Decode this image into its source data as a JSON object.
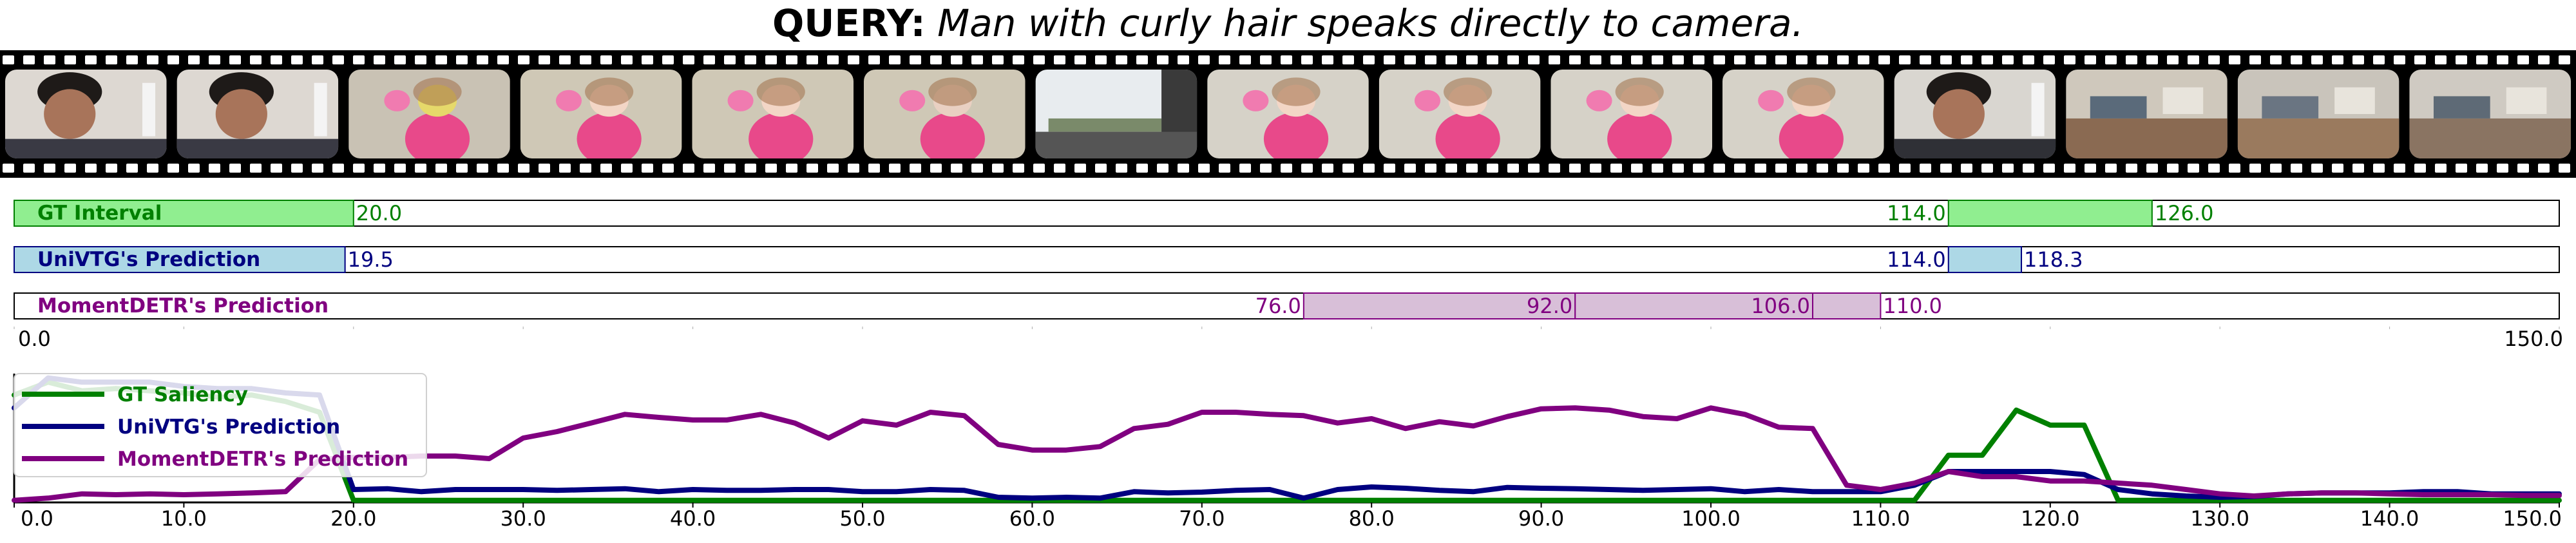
{
  "query": {
    "label": "QUERY:",
    "text": "Man with curly hair speaks directly to camera."
  },
  "filmstrip": {
    "frames": [
      {
        "subject": "man",
        "palette": [
          "#ddd8d2",
          "#a8745a",
          "#3a3a44"
        ]
      },
      {
        "subject": "man",
        "palette": [
          "#ddd8d2",
          "#a8745a",
          "#3a3a44"
        ]
      },
      {
        "subject": "girl",
        "palette": [
          "#c9c2b4",
          "#e8498a",
          "#e6d96a"
        ]
      },
      {
        "subject": "girl",
        "palette": [
          "#cfc8b6",
          "#e8498a",
          "#f3d6c6"
        ]
      },
      {
        "subject": "girl",
        "palette": [
          "#cfc8b6",
          "#e8498a",
          "#f3d6c6"
        ]
      },
      {
        "subject": "girl",
        "palette": [
          "#cfc8b6",
          "#e8498a",
          "#e9d0c2"
        ]
      },
      {
        "subject": "window",
        "palette": [
          "#e8ecef",
          "#3a3a3a",
          "#7a8a6a"
        ]
      },
      {
        "subject": "girl",
        "palette": [
          "#d6d2c8",
          "#e8498a",
          "#f3d6c6"
        ]
      },
      {
        "subject": "girl",
        "palette": [
          "#d6d2c8",
          "#e8498a",
          "#f3d6c6"
        ]
      },
      {
        "subject": "girl",
        "palette": [
          "#d6d2c8",
          "#e8498a",
          "#f3d6c6"
        ]
      },
      {
        "subject": "girl",
        "palette": [
          "#d6d2c8",
          "#e8498a",
          "#f3d6c6"
        ]
      },
      {
        "subject": "man",
        "palette": [
          "#d9d6d0",
          "#a8745a",
          "#2f3036"
        ]
      },
      {
        "subject": "room",
        "palette": [
          "#cfc8bc",
          "#8a6a52",
          "#5a6a7a"
        ]
      },
      {
        "subject": "room",
        "palette": [
          "#c9c4bb",
          "#9a7a5e",
          "#6a7582"
        ]
      },
      {
        "subject": "room",
        "palette": [
          "#cfcac2",
          "#8a7462",
          "#5e6a76"
        ]
      }
    ]
  },
  "colors": {
    "gt": "#008000",
    "gt_fill": "#90ee90",
    "univtg": "#000080",
    "univtg_fill": "#add8e6",
    "momentdetr": "#800080",
    "momentdetr_fill": "#d8bfd8"
  },
  "chart_data": {
    "type": "line",
    "x_range": [
      0,
      150
    ],
    "intervals": [
      {
        "name": "GT Interval",
        "segments": [
          [
            0,
            20.0
          ],
          [
            114.0,
            126.0
          ]
        ],
        "labels": [
          "20.0",
          "114.0",
          "126.0"
        ]
      },
      {
        "name": "UniVTG's Prediction",
        "segments": [
          [
            0,
            19.5
          ],
          [
            114.0,
            118.3
          ]
        ],
        "labels": [
          "19.5",
          "114.0",
          "118.3"
        ]
      },
      {
        "name": "MomentDETR's Prediction",
        "segments": [
          [
            76.0,
            92.0
          ],
          [
            92.0,
            106.0
          ],
          [
            106.0,
            110.0
          ]
        ],
        "labels": [
          "76.0",
          "92.0",
          "106.0",
          "110.0"
        ]
      }
    ],
    "interval_axis_labels": [
      "0.0",
      "150.0"
    ],
    "x": [
      0,
      2,
      4,
      6,
      8,
      10,
      12,
      14,
      16,
      18,
      20,
      22,
      24,
      26,
      28,
      30,
      32,
      34,
      36,
      38,
      40,
      42,
      44,
      46,
      48,
      50,
      52,
      54,
      56,
      58,
      60,
      62,
      64,
      66,
      68,
      70,
      72,
      74,
      76,
      78,
      80,
      82,
      84,
      86,
      88,
      90,
      92,
      94,
      96,
      98,
      100,
      102,
      104,
      106,
      108,
      110,
      112,
      114,
      116,
      118,
      120,
      122,
      124,
      126,
      128,
      130,
      132,
      134,
      136,
      138,
      140,
      142,
      144,
      146,
      148,
      150
    ],
    "series": [
      {
        "name": "GT Saliency",
        "values": [
          2.5,
          2.8,
          2.6,
          2.65,
          2.6,
          2.55,
          2.45,
          2.5,
          2.35,
          2.1,
          0.05,
          0.05,
          0.05,
          0.05,
          0.05,
          0.05,
          0.05,
          0.05,
          0.05,
          0.05,
          0.05,
          0.05,
          0.05,
          0.05,
          0.05,
          0.05,
          0.05,
          0.05,
          0.05,
          0.05,
          0.05,
          0.05,
          0.05,
          0.05,
          0.05,
          0.05,
          0.05,
          0.05,
          0.05,
          0.05,
          0.05,
          0.05,
          0.05,
          0.05,
          0.05,
          0.05,
          0.05,
          0.05,
          0.05,
          0.05,
          0.05,
          0.05,
          0.05,
          0.05,
          0.05,
          0.05,
          0.05,
          1.1,
          1.1,
          2.15,
          1.8,
          1.8,
          0.05,
          0.05,
          0.05,
          0.05,
          0.05,
          0.05,
          0.05,
          0.05,
          0.05,
          0.05,
          0.05,
          0.05,
          0.05,
          0.05
        ]
      },
      {
        "name": "UniVTG's Prediction",
        "values": [
          2.2,
          2.9,
          2.8,
          2.8,
          2.8,
          2.7,
          2.65,
          2.65,
          2.55,
          2.5,
          0.3,
          0.32,
          0.25,
          0.3,
          0.3,
          0.3,
          0.28,
          0.3,
          0.32,
          0.25,
          0.3,
          0.28,
          0.28,
          0.3,
          0.3,
          0.25,
          0.25,
          0.3,
          0.28,
          0.12,
          0.1,
          0.12,
          0.1,
          0.25,
          0.22,
          0.24,
          0.28,
          0.3,
          0.1,
          0.3,
          0.36,
          0.33,
          0.28,
          0.25,
          0.35,
          0.33,
          0.32,
          0.3,
          0.28,
          0.3,
          0.32,
          0.25,
          0.3,
          0.25,
          0.25,
          0.25,
          0.4,
          0.72,
          0.72,
          0.72,
          0.72,
          0.65,
          0.3,
          0.2,
          0.15,
          0.12,
          0.14,
          0.2,
          0.22,
          0.22,
          0.22,
          0.25,
          0.25,
          0.2,
          0.2,
          0.2
        ]
      },
      {
        "name": "MomentDETR's Prediction",
        "values": [
          0.05,
          0.1,
          0.2,
          0.18,
          0.2,
          0.18,
          0.2,
          0.22,
          0.25,
          1.0,
          1.05,
          1.05,
          1.08,
          1.08,
          1.02,
          1.5,
          1.65,
          1.85,
          2.05,
          1.98,
          1.92,
          1.92,
          2.05,
          1.85,
          1.5,
          1.9,
          1.8,
          2.1,
          2.02,
          1.35,
          1.22,
          1.22,
          1.3,
          1.72,
          1.82,
          2.1,
          2.1,
          2.05,
          2.02,
          1.85,
          1.95,
          1.72,
          1.88,
          1.78,
          2.0,
          2.18,
          2.2,
          2.15,
          2.0,
          1.95,
          2.2,
          2.05,
          1.75,
          1.72,
          0.4,
          0.3,
          0.45,
          0.72,
          0.6,
          0.6,
          0.5,
          0.5,
          0.45,
          0.4,
          0.3,
          0.2,
          0.15,
          0.2,
          0.22,
          0.22,
          0.2,
          0.18,
          0.18,
          0.18,
          0.16,
          0.16
        ]
      }
    ],
    "x_ticks": [
      "0.0",
      "10.0",
      "20.0",
      "30.0",
      "40.0",
      "50.0",
      "60.0",
      "70.0",
      "80.0",
      "90.0",
      "100.0",
      "110.0",
      "120.0",
      "130.0",
      "140.0",
      "150.0"
    ],
    "xlim": [
      0,
      150
    ],
    "ylim": [
      0,
      3
    ],
    "legend": "top-left",
    "grid": false
  }
}
